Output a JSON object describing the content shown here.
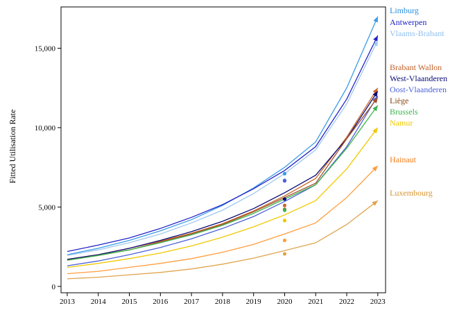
{
  "chart_data": {
    "type": "line",
    "title": "",
    "xlabel": "",
    "ylabel": "Fitted Utilisation Rate",
    "x": [
      2013,
      2014,
      2015,
      2016,
      2017,
      2018,
      2019,
      2020,
      2021,
      2022,
      2023
    ],
    "x_tick_labels": [
      "2013",
      "2014",
      "2015",
      "2016",
      "2017",
      "2018",
      "2019",
      "2020",
      "2021",
      "2022",
      "2023"
    ],
    "y_ticks": [
      0,
      5000,
      10000,
      15000
    ],
    "y_tick_labels": [
      "0",
      "5,000",
      "10,000",
      "15,000"
    ],
    "ylim": [
      -400,
      17600
    ],
    "xlim": [
      2012.8,
      2023.25
    ],
    "grid": false,
    "legend_placement": "right",
    "series": [
      {
        "name": "Limburg",
        "color": "#3a9be6",
        "values": [
          2000,
          2400,
          2900,
          3500,
          4200,
          5100,
          6200,
          7500,
          9100,
          12500,
          17000
        ],
        "observed_2020": 7100
      },
      {
        "name": "Antwerpen",
        "color": "#2323c8",
        "values": [
          2200,
          2600,
          3050,
          3650,
          4350,
          5150,
          6150,
          7300,
          8800,
          11800,
          15800
        ],
        "observed_2020": null
      },
      {
        "name": "Vlaams-Brabant",
        "color": "#9fc8ee",
        "values": [
          1950,
          2300,
          2750,
          3300,
          4000,
          4800,
          5850,
          7100,
          8600,
          11500,
          15500
        ],
        "observed_2020": 6700
      },
      {
        "name": "Brabant Wallon",
        "color": "#c8672a",
        "values": [
          1700,
          2000,
          2400,
          2850,
          3350,
          3950,
          4750,
          5700,
          6800,
          9400,
          12500
        ],
        "observed_2020": 5100
      },
      {
        "name": "West-Vlaanderen",
        "color": "#0a0a78",
        "values": [
          1700,
          2000,
          2400,
          2900,
          3450,
          4100,
          4900,
          5900,
          7000,
          9300,
          12300
        ],
        "observed_2020": 5500
      },
      {
        "name": "Oost-Vlaanderen",
        "color": "#4a5fd9",
        "values": [
          1300,
          1600,
          2000,
          2450,
          3000,
          3650,
          4400,
          5350,
          6400,
          8800,
          12000
        ],
        "observed_2020": 6650
      },
      {
        "name": "Liège",
        "color": "#a0522d",
        "values": [
          1650,
          1950,
          2300,
          2800,
          3300,
          3900,
          4700,
          5600,
          6500,
          9300,
          11900
        ],
        "observed_2020": 4850
      },
      {
        "name": "Brussels",
        "color": "#3cb44b",
        "values": [
          1650,
          1950,
          2300,
          2750,
          3250,
          3850,
          4600,
          5500,
          6400,
          8700,
          11400
        ],
        "observed_2020": 4800
      },
      {
        "name": "Namur",
        "color": "#f0c800",
        "values": [
          1200,
          1450,
          1750,
          2100,
          2550,
          3100,
          3750,
          4500,
          5400,
          7400,
          10000
        ],
        "observed_2020": 4150
      },
      {
        "name": "Hainaut",
        "color": "#ff9d3c",
        "values": [
          800,
          950,
          1200,
          1450,
          1750,
          2150,
          2650,
          3300,
          4000,
          5600,
          7600
        ],
        "observed_2020": 2900
      },
      {
        "name": "Luxembourg",
        "color": "#e0a44d",
        "values": [
          480,
          580,
          730,
          880,
          1100,
          1400,
          1780,
          2250,
          2750,
          3900,
          5400
        ],
        "observed_2020": 2050
      }
    ],
    "legend": [
      {
        "name": "Limburg",
        "color": "#2a8fe0"
      },
      {
        "name": "Antwerpen",
        "color": "#1c1cc4"
      },
      {
        "name": "Vlaams-Brabant",
        "color": "#8fc0ee"
      },
      {
        "name": "Brabant Wallon",
        "color": "#c0622a"
      },
      {
        "name": "West-Vlaanderen",
        "color": "#0a0a78"
      },
      {
        "name": "Oost-Vlaanderen",
        "color": "#4a5fd9"
      },
      {
        "name": "Liège",
        "color": "#8b4513"
      },
      {
        "name": "Brussels",
        "color": "#3cb44b"
      },
      {
        "name": "Namur",
        "color": "#f0c800"
      },
      {
        "name": "Hainaut",
        "color": "#f07d1a"
      },
      {
        "name": "Luxembourg",
        "color": "#d9952f"
      }
    ]
  }
}
